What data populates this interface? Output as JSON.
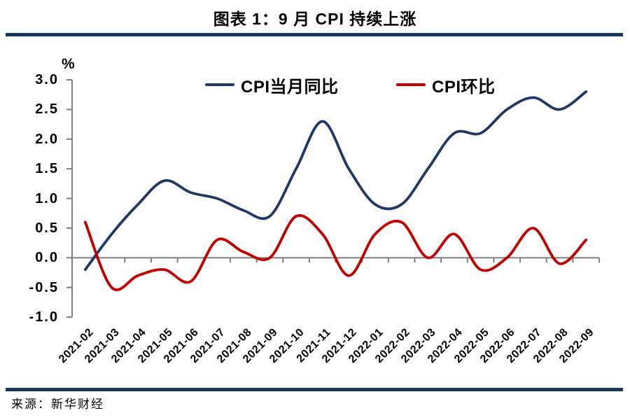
{
  "header": {
    "title": "图表 1：9 月 CPI 持续上涨"
  },
  "footer": {
    "source": "来源：新华财经"
  },
  "colors": {
    "rule": "#17375e",
    "axis": "#7f7f7f",
    "series_yoy": "#1f3864",
    "series_mom": "#c00000"
  },
  "chart_data": {
    "type": "line",
    "title": "图表 1：9 月 CPI 持续上涨",
    "unit": "%",
    "legend_position": "top",
    "grid": false,
    "x_axis_at_zero": true,
    "ylim": [
      -1.0,
      3.0
    ],
    "ytick_step": 0.5,
    "ytick_labels": [
      "3.0",
      "2.5",
      "2.0",
      "1.5",
      "1.0",
      "0.5",
      "0.0",
      "-0.5",
      "-1.0"
    ],
    "categories": [
      "2021-02",
      "2021-03",
      "2021-04",
      "2021-05",
      "2021-06",
      "2021-07",
      "2021-08",
      "2021-09",
      "2021-10",
      "2021-11",
      "2021-12",
      "2022-01",
      "2022-02",
      "2022-03",
      "2022-04",
      "2022-05",
      "2022-06",
      "2022-07",
      "2022-08",
      "2022-09"
    ],
    "series": [
      {
        "name": "CPI当月同比",
        "color": "#1f3864",
        "values": [
          -0.2,
          0.4,
          0.9,
          1.3,
          1.1,
          1.0,
          0.8,
          0.7,
          1.5,
          2.3,
          1.5,
          0.9,
          0.9,
          1.5,
          2.1,
          2.1,
          2.5,
          2.7,
          2.5,
          2.8
        ]
      },
      {
        "name": "CPI环比",
        "color": "#c00000",
        "values": [
          0.6,
          -0.5,
          -0.3,
          -0.2,
          -0.4,
          0.3,
          0.1,
          0.0,
          0.7,
          0.4,
          -0.3,
          0.4,
          0.6,
          0.0,
          0.4,
          -0.2,
          0.0,
          0.5,
          -0.1,
          0.3
        ]
      }
    ]
  }
}
